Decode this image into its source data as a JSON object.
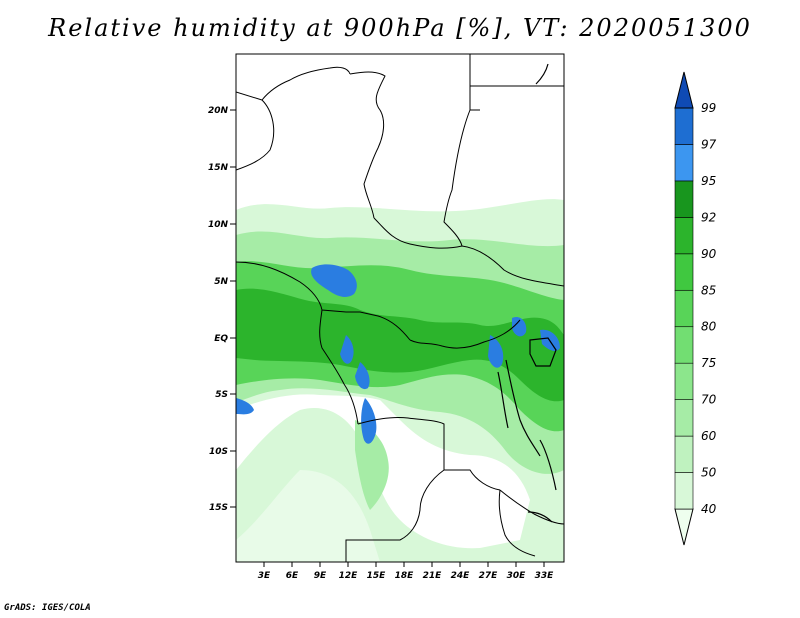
{
  "title": "Relative humidity at 900hPa [%], VT: 2020051300",
  "credit": "GrADS: IGES/COLA",
  "map": {
    "lat_labels": [
      "20N",
      "15N",
      "10N",
      "5N",
      "EQ",
      "5S",
      "10S",
      "15S"
    ],
    "lon_labels": [
      "3E",
      "6E",
      "9E",
      "12E",
      "15E",
      "18E",
      "21E",
      "24E",
      "27E",
      "30E",
      "33E"
    ]
  },
  "colorbar": {
    "levels": [
      "40",
      "50",
      "60",
      "70",
      "75",
      "80",
      "85",
      "90",
      "92",
      "95",
      "97",
      "99"
    ],
    "colors": [
      "#eefeee",
      "#d8f8d8",
      "#bff2bf",
      "#a6eca6",
      "#8ce68c",
      "#72de72",
      "#58d458",
      "#40c840",
      "#2cb42c",
      "#18961e",
      "#3c96f0",
      "#1e6ed2",
      "#0f4ab4"
    ]
  },
  "palette": {
    "land_outline": "#000000",
    "wet_blue": "#2a7de1"
  }
}
